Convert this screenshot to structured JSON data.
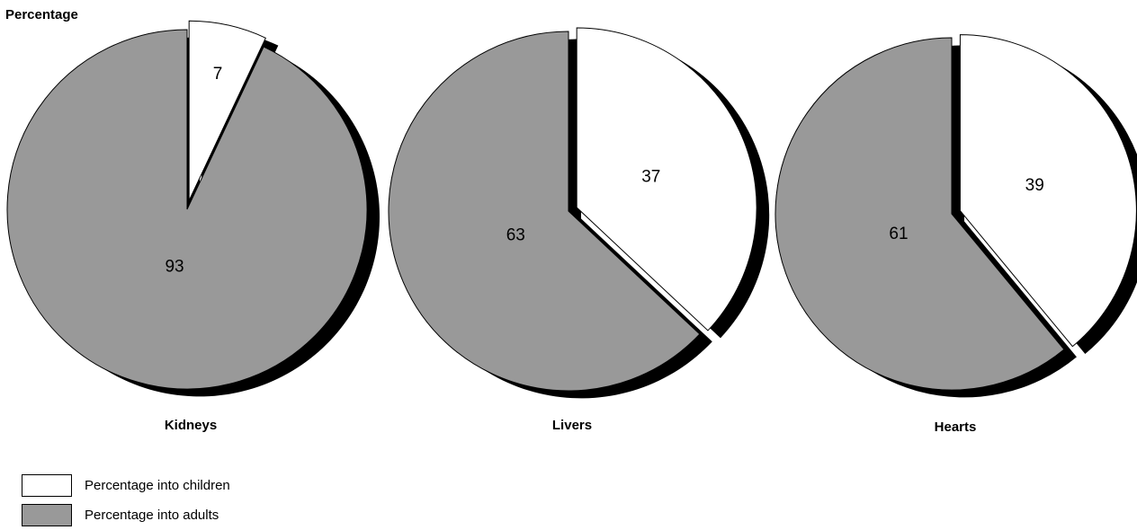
{
  "chart_data": {
    "type": "pie",
    "ylabel": "Percentage",
    "colors": {
      "children": "#ffffff",
      "adults": "#999999",
      "shadow": "#000000"
    },
    "charts": [
      {
        "title": "Kidneys",
        "slices": [
          {
            "name": "Percentage into children",
            "value": 7
          },
          {
            "name": "Percentage into adults",
            "value": 93
          }
        ]
      },
      {
        "title": "Livers",
        "slices": [
          {
            "name": "Percentage into children",
            "value": 37
          },
          {
            "name": "Percentage into adults",
            "value": 63
          }
        ]
      },
      {
        "title": "Hearts",
        "slices": [
          {
            "name": "Percentage into children",
            "value": 39
          },
          {
            "name": "Percentage into adults",
            "value": 61
          }
        ]
      }
    ],
    "legend": [
      {
        "label": "Percentage into children",
        "color": "#ffffff"
      },
      {
        "label": "Percentage into adults",
        "color": "#999999"
      }
    ],
    "legend_position": "bottom-left"
  }
}
